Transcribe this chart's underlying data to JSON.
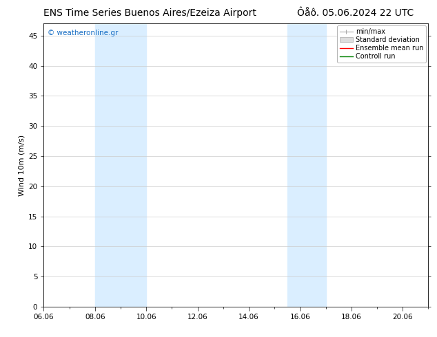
{
  "title_left": "ENS Time Series Buenos Aires/Ezeiza Airport",
  "title_right": "Ôåô. 05.06.2024 22 UTC",
  "ylabel": "Wind 10m (m/s)",
  "ylim": [
    0,
    47
  ],
  "yticks": [
    0,
    5,
    10,
    15,
    20,
    25,
    30,
    35,
    40,
    45
  ],
  "xtick_labels": [
    "06.06",
    "08.06",
    "10.06",
    "12.06",
    "14.06",
    "16.06",
    "18.06",
    "20.06"
  ],
  "xtick_positions": [
    6.0,
    8.0,
    10.0,
    12.0,
    14.0,
    16.0,
    18.0,
    20.0
  ],
  "xlim": [
    6.0,
    21.0
  ],
  "background_color": "#ffffff",
  "plot_bg_color": "#ffffff",
  "shaded_bands": [
    {
      "x_start": 8.0,
      "x_end": 10.0,
      "color": "#daeeff"
    },
    {
      "x_start": 15.5,
      "x_end": 17.0,
      "color": "#daeeff"
    }
  ],
  "legend_entries": [
    {
      "label": "min/max",
      "color": "#aaaaaa"
    },
    {
      "label": "Standard deviation",
      "color": "#cccccc"
    },
    {
      "label": "Ensemble mean run",
      "color": "#ff0000"
    },
    {
      "label": "Controll run",
      "color": "#008000"
    }
  ],
  "watermark_text": "© weatheronline.gr",
  "watermark_color": "#1a6fc4",
  "title_fontsize": 10,
  "axis_label_fontsize": 8,
  "tick_fontsize": 7.5,
  "legend_fontsize": 7,
  "grid_color": "#cccccc",
  "grid_linewidth": 0.5,
  "border_color": "#000000"
}
